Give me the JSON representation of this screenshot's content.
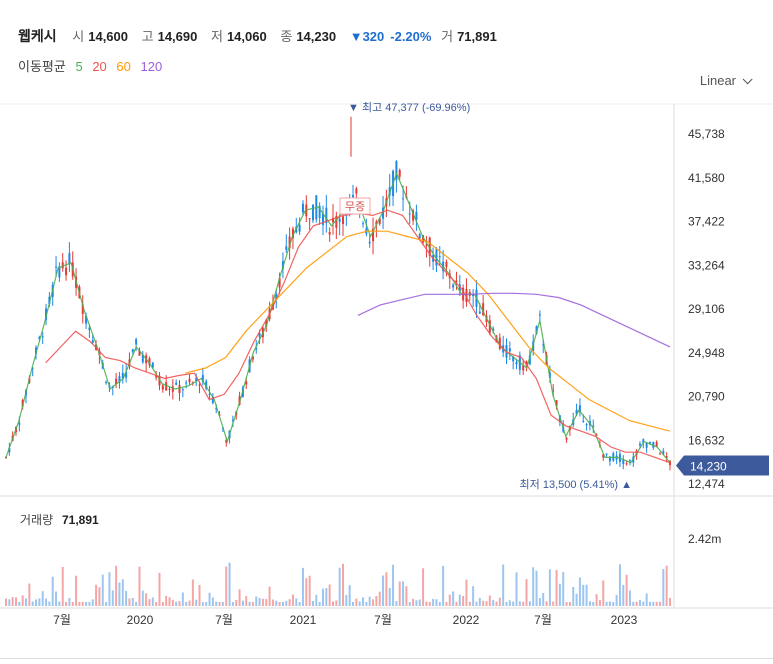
{
  "header": {
    "name": "웹케시",
    "open_label": "시",
    "open": "14,600",
    "high_label": "고",
    "high": "14,690",
    "low_label": "저",
    "low": "14,060",
    "close_label": "종",
    "close": "14,230",
    "change": "▼320",
    "change_pct": "-2.20%",
    "volume_label": "거",
    "volume": "71,891"
  },
  "moving_average": {
    "label": "이동평균",
    "periods": [
      "5",
      "20",
      "60",
      "120"
    ],
    "colors": [
      "#4caf50",
      "#ef5350",
      "#ff9800",
      "#9c5fdb"
    ]
  },
  "scale_selector": {
    "value": "Linear"
  },
  "chart_data": {
    "type": "line",
    "y_ticks": [
      "45,738",
      "41,580",
      "37,422",
      "33,264",
      "29,106",
      "24,948",
      "20,790",
      "16,632",
      "12,474"
    ],
    "y_tick_values": [
      45738,
      41580,
      37422,
      33264,
      29106,
      24948,
      20790,
      16632,
      12474
    ],
    "x_ticks": [
      "7월",
      "2020",
      "7월",
      "2021",
      "7월",
      "2022",
      "7월",
      "2023"
    ],
    "current_price_label": "14,230",
    "current_price": 14230,
    "high_annotation": "▼ 최고 47,377 (-69.96%)",
    "high_value": 47377,
    "low_annotation": "최저 13,500 (5.41%) ▲",
    "low_value": 13500,
    "event_label": "무증",
    "volume_label": "거래량",
    "volume_value": "71,891",
    "volume_tick": "2.42m",
    "series": [
      {
        "name": "5",
        "color": "#4caf50",
        "values": [
          15000,
          18500,
          23500,
          28000,
          33000,
          33500,
          29000,
          25500,
          21500,
          22500,
          25500,
          24000,
          22000,
          21500,
          21800,
          22500,
          20500,
          16500,
          20500,
          25000,
          27500,
          32000,
          36000,
          38500,
          38800,
          37000,
          38500,
          39500,
          36000,
          38500,
          42000,
          39000,
          36000,
          34000,
          32500,
          30500,
          30500,
          28000,
          25500,
          24500,
          23500,
          28000,
          21000,
          17000,
          19500,
          18000,
          15000,
          15000,
          14500,
          16500,
          16000,
          14500
        ]
      },
      {
        "name": "20",
        "color": "#ef5350",
        "values": [
          24000,
          25500,
          27000,
          26000,
          24500,
          24200,
          23500,
          23000,
          22500,
          22800,
          23000,
          20500,
          21000,
          23000,
          26000,
          28500,
          31500,
          35000,
          37000,
          37500,
          38000,
          38200,
          38000,
          38500,
          38000,
          36000,
          34000,
          32500,
          31000,
          28500,
          26500,
          25000,
          24500,
          22500,
          19000,
          18000,
          17500,
          17000,
          16000,
          15500,
          15500,
          15000,
          14500
        ]
      },
      {
        "name": "60",
        "color": "#ff9800",
        "values": [
          23000,
          23500,
          24500,
          27000,
          29000,
          31000,
          33000,
          34500,
          36000,
          36500,
          36500,
          36000,
          35500,
          34000,
          32500,
          30500,
          28000,
          25500,
          23500,
          22000,
          20500,
          19500,
          18500,
          18000,
          17500
        ]
      },
      {
        "name": "120",
        "color": "#9c5fdb",
        "values": [
          28500,
          29500,
          30000,
          30500,
          30500,
          30500,
          30600,
          30600,
          30500,
          30200,
          29500,
          28500,
          27500,
          26500,
          25500
        ]
      }
    ]
  }
}
